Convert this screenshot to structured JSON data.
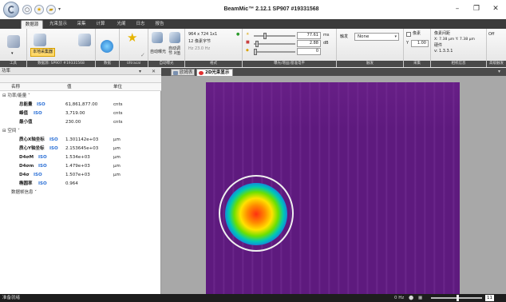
{
  "window": {
    "title": "BeamMic™ 2.12.1 SP907 #19331568",
    "minimize": "–",
    "maximize": "❐",
    "close": "✕"
  },
  "qat": {
    "icons": [
      "circle-icon",
      "star-icon",
      "folder-icon"
    ]
  },
  "ribbon_tabs": [
    "数据源",
    "光束显示",
    "采集",
    "计算",
    "光阑",
    "日志",
    "报告"
  ],
  "ribbon": {
    "groups": {
      "tools": "工具",
      "source": "数据源: SP907 #19331568",
      "data": "数据",
      "ultracal": "Ultracal",
      "auto_exposure": "自动曝光",
      "format": "格式",
      "exposure_gain_level": "曝光/增益/基准电平",
      "trigger": "触发",
      "capture": "采集",
      "camera_info": "相机信息",
      "advanced": "高级触发"
    },
    "source_select": "本地采集器",
    "auto_exposure_label": "自动曝光",
    "auto_exposure_btn": "自动调\n节 X值",
    "format_res": "964 x 724 1x1",
    "format_bits": "12 像素字节",
    "format_hz": "Hz 23.0 Hz",
    "exposure_value": "77.61",
    "exposure_unit": "ms",
    "gain_value": "2.88",
    "gain_unit": "dB",
    "level_value": "0",
    "trigger_label": "触发",
    "trigger_value": "None",
    "pixel_label": "像素",
    "pixel_y_label": "Y",
    "pixel_value": "1.00",
    "pixel_size_label": "像素间距",
    "pixel_size": "X: 7.38 µm  Y: 7.38 µm",
    "firmware_label": "硬件",
    "firmware": "v: 1.3.3.1",
    "off_label": "Off"
  },
  "left_panel": {
    "title": "功率",
    "pin": "▾",
    "close": "✕",
    "columns": {
      "name": "名称",
      "value": "值",
      "unit": "单位"
    },
    "categories": {
      "power": "功率/能量",
      "spatial": "空间",
      "frame": "数据帧信息"
    },
    "rows": [
      {
        "name": "总能量",
        "iso": "ISO",
        "value": "61,861,877.00",
        "unit": "cnts"
      },
      {
        "name": "峰值",
        "iso": "ISO",
        "value": "3,719.00",
        "unit": "cnts"
      },
      {
        "name": "最小值",
        "iso": "",
        "value": "230.00",
        "unit": "cnts"
      },
      {
        "name": "质心X轴坐标",
        "iso": "ISO",
        "value": "1.301142e+03",
        "unit": "µm"
      },
      {
        "name": "质心Y轴坐标",
        "iso": "ISO",
        "value": "2.153645e+03",
        "unit": "µm"
      },
      {
        "name": "D4σM",
        "iso": "ISO",
        "value": "1.534e+03",
        "unit": "µm"
      },
      {
        "name": "D4σm",
        "iso": "ISO",
        "value": "1.479e+03",
        "unit": "µm"
      },
      {
        "name": "D4σ",
        "iso": "ISO",
        "value": "1.507e+03",
        "unit": "µm"
      },
      {
        "name": "椭圆率",
        "iso": "ISO",
        "value": "0.964",
        "unit": ""
      }
    ]
  },
  "doc_tabs": [
    {
      "label": "欧姆表",
      "active": false
    },
    {
      "label": "2D光束显示",
      "active": true
    }
  ],
  "status": {
    "left": "准备就绪",
    "fps": "0 Hz",
    "zoom": "11"
  },
  "colors": {
    "beam_background": "#5e1a7e",
    "ring": "#f0f0f0",
    "accent": "#ffd86b"
  }
}
